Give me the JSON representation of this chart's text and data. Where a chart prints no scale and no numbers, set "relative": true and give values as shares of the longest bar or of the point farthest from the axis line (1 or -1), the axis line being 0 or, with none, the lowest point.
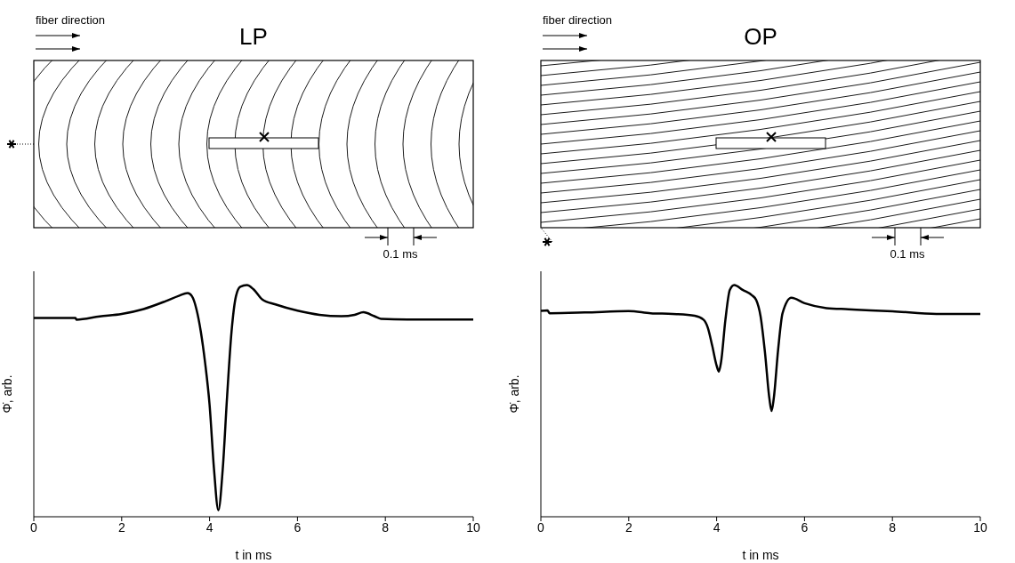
{
  "chart_data": [
    {
      "type": "line",
      "title": "LP",
      "xlabel": "t in ms",
      "ylabel": "Φ̇, arb.",
      "relative": true,
      "xlim": [
        0,
        10
      ],
      "xticks": [
        0,
        2,
        4,
        6,
        8,
        10
      ],
      "annotations": [
        "fiber direction",
        "0.1 ms"
      ],
      "x": [
        0,
        0.95,
        0.97,
        1.5,
        2,
        2.5,
        3,
        3.3,
        3.5,
        3.6,
        3.7,
        3.8,
        3.9,
        4.0,
        4.1,
        4.2,
        4.3,
        4.4,
        4.5,
        4.6,
        4.7,
        4.85,
        5.0,
        5.2,
        5.5,
        6,
        6.5,
        7,
        7.3,
        7.5,
        7.75,
        7.9,
        8.5,
        10
      ],
      "series": [
        {
          "color": "#000000",
          "values": [
            0.858,
            0.858,
            0.851,
            0.865,
            0.876,
            0.897,
            0.931,
            0.954,
            0.966,
            0.952,
            0.897,
            0.8,
            0.662,
            0.483,
            0.207,
            0.028,
            0.207,
            0.524,
            0.8,
            0.952,
            0.993,
            1.0,
            0.982,
            0.938,
            0.917,
            0.89,
            0.872,
            0.866,
            0.872,
            0.883,
            0.866,
            0.855,
            0.852,
            0.852
          ]
        }
      ]
    },
    {
      "type": "line",
      "title": "OP",
      "xlabel": "t in ms",
      "ylabel": "Φ̇, arb.",
      "relative": true,
      "xlim": [
        0,
        10
      ],
      "xticks": [
        0,
        2,
        4,
        6,
        8,
        10
      ],
      "annotations": [
        "fiber direction",
        "0.1 ms"
      ],
      "x": [
        0,
        0.15,
        0.2,
        1,
        2,
        2.5,
        3,
        3.5,
        3.7,
        3.8,
        3.9,
        4.0,
        4.05,
        4.1,
        4.2,
        4.3,
        4.4,
        4.6,
        4.8,
        4.9,
        5.0,
        5.1,
        5.2,
        5.25,
        5.3,
        5.4,
        5.5,
        5.7,
        6.0,
        6.5,
        7,
        7.5,
        8,
        9,
        10
      ],
      "series": [
        {
          "color": "#000000",
          "values": [
            0.889,
            0.891,
            0.879,
            0.882,
            0.888,
            0.879,
            0.876,
            0.868,
            0.851,
            0.816,
            0.738,
            0.652,
            0.627,
            0.667,
            0.851,
            0.979,
            1.0,
            0.979,
            0.957,
            0.936,
            0.865,
            0.709,
            0.511,
            0.457,
            0.511,
            0.723,
            0.879,
            0.946,
            0.922,
            0.901,
            0.896,
            0.891,
            0.887,
            0.876,
            0.876
          ]
        }
      ]
    }
  ]
}
